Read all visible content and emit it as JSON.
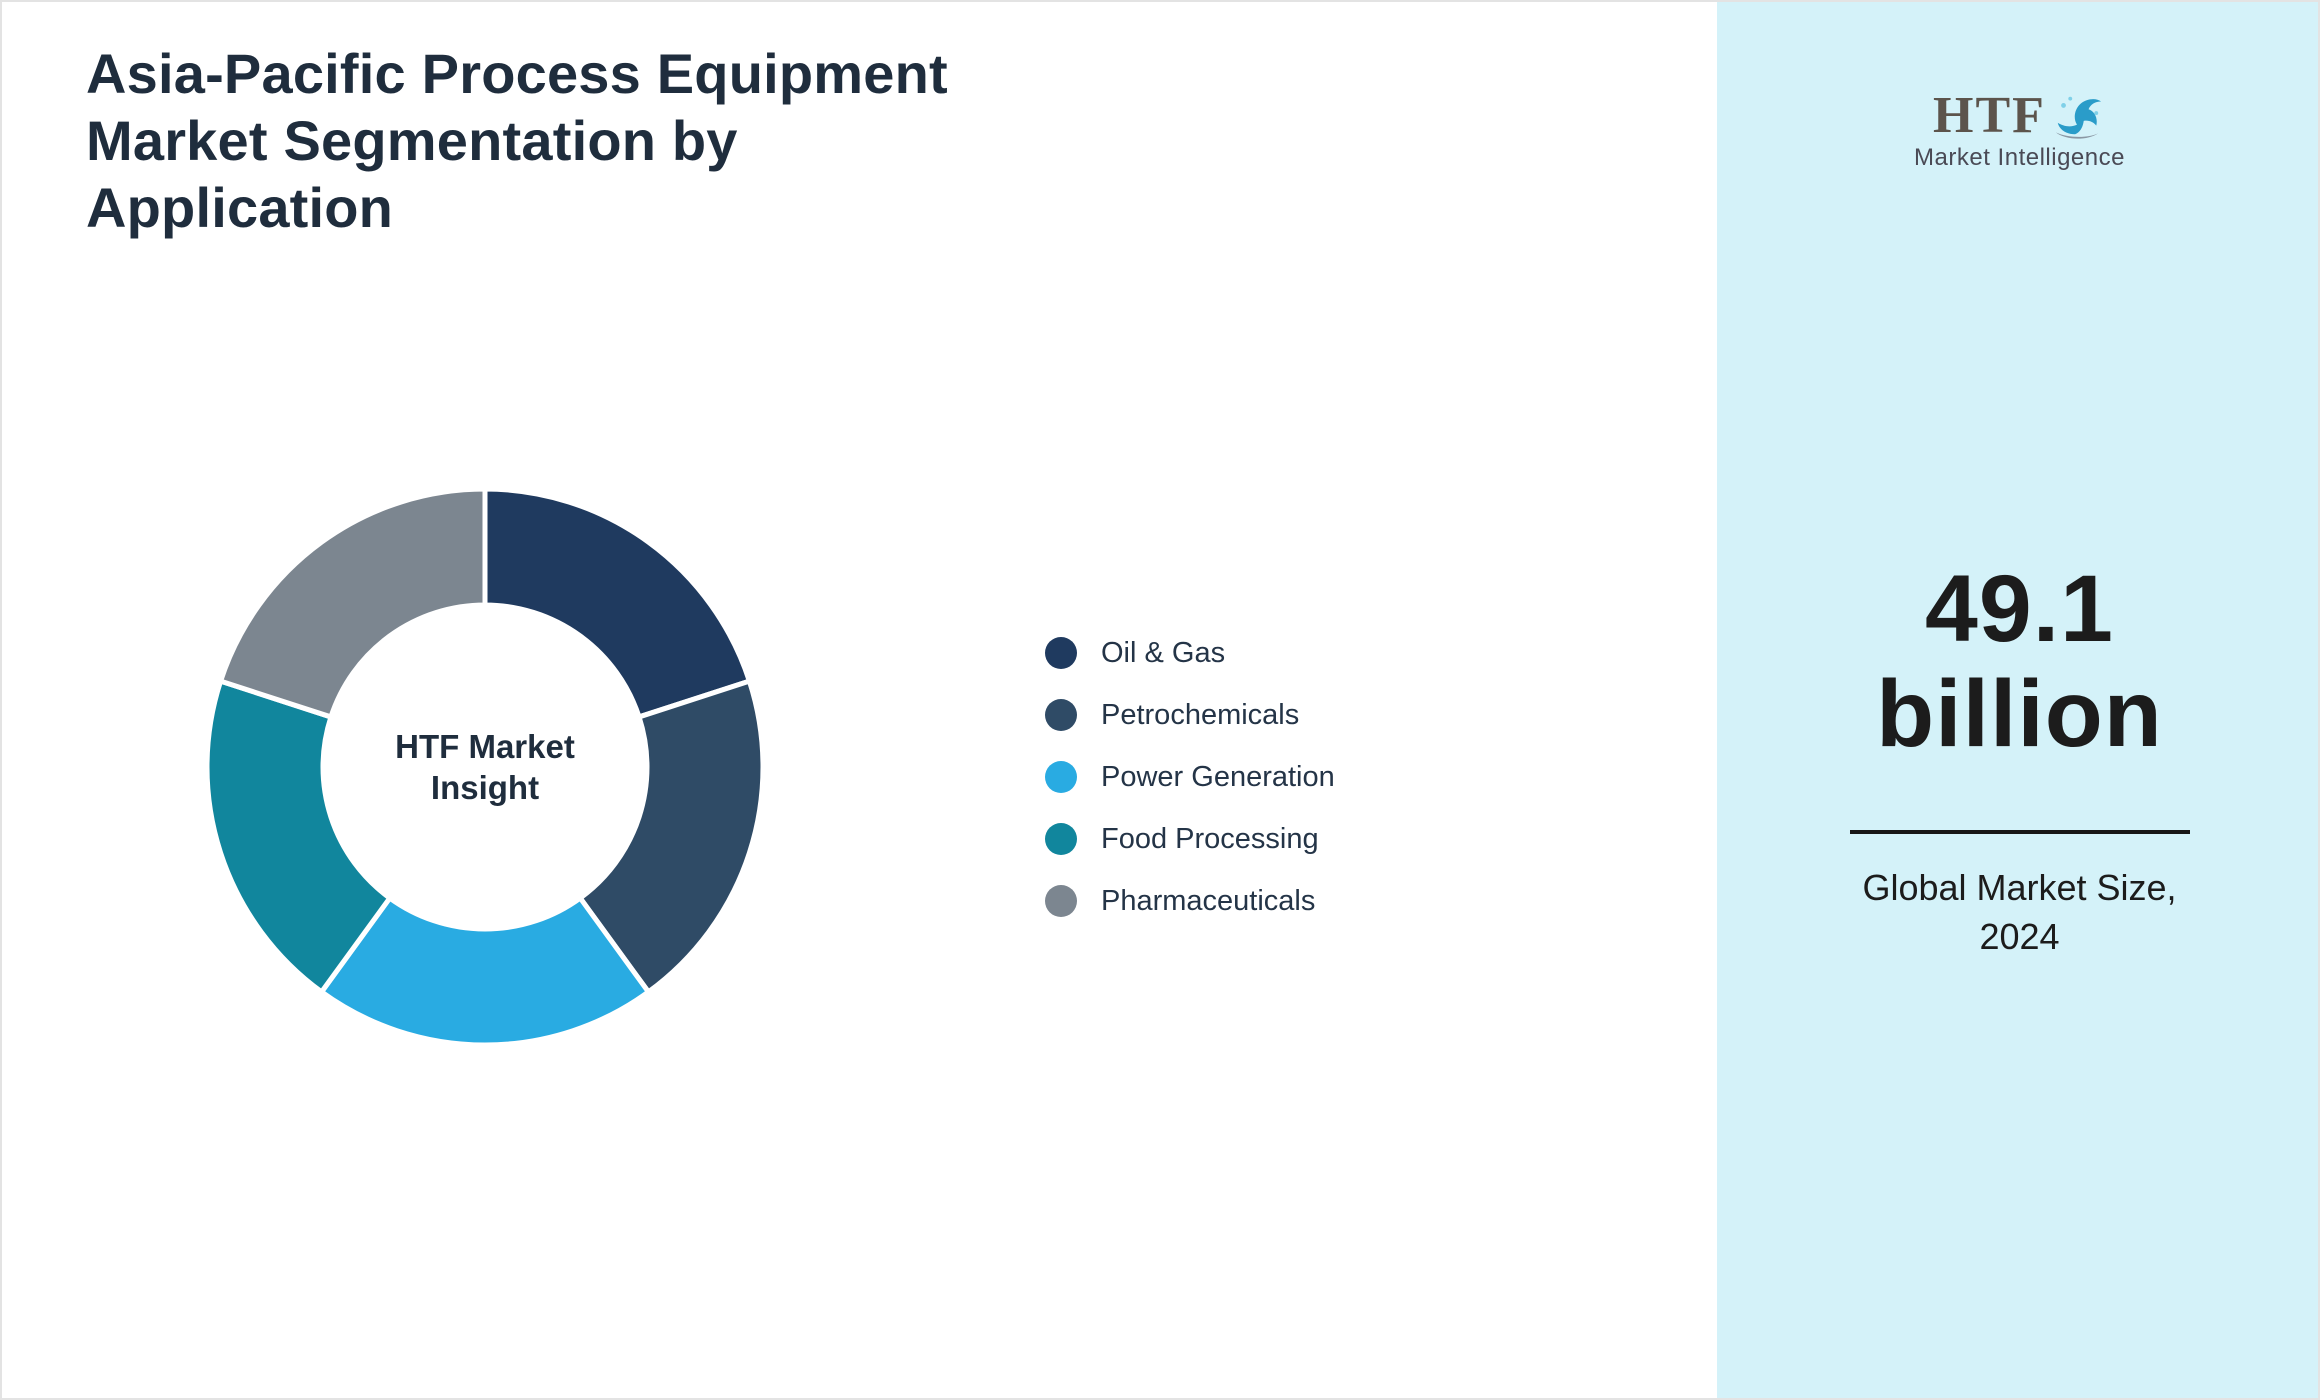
{
  "title": "Asia-Pacific Process Equipment Market Segmentation by Application",
  "chart_data": {
    "type": "pie",
    "subtype": "donut",
    "title": "Asia-Pacific Process Equipment Market Segmentation by Application",
    "center_label": "HTF Market Insight",
    "categories": [
      "Oil & Gas",
      "Petrochemicals",
      "Power Generation",
      "Food Processing",
      "Pharmaceuticals"
    ],
    "values": [
      20,
      20,
      20,
      20,
      20
    ],
    "unit": "%",
    "colors": [
      "#1f3a5f",
      "#2f4b66",
      "#29abe2",
      "#11869d",
      "#7c8690"
    ],
    "start_angle_deg": 0,
    "direction": "clockwise",
    "legend_position": "right",
    "slice_gap_color": "#ffffff"
  },
  "sidebar": {
    "background_color": "#d4f2f9",
    "logo": {
      "text": "HTF",
      "subtext": "Market Intelligence",
      "icon": "dolphin-splash-icon",
      "text_color": "#5c544c",
      "icon_color": "#2a9cc9"
    },
    "market_size_value": "49.1",
    "market_size_unit": "billion",
    "caption_line1": "Global Market Size,",
    "caption_line2": "2024"
  },
  "theme": {
    "title_color": "#1f2d3d",
    "legend_text_color": "#243447",
    "page_background": "#ffffff"
  }
}
